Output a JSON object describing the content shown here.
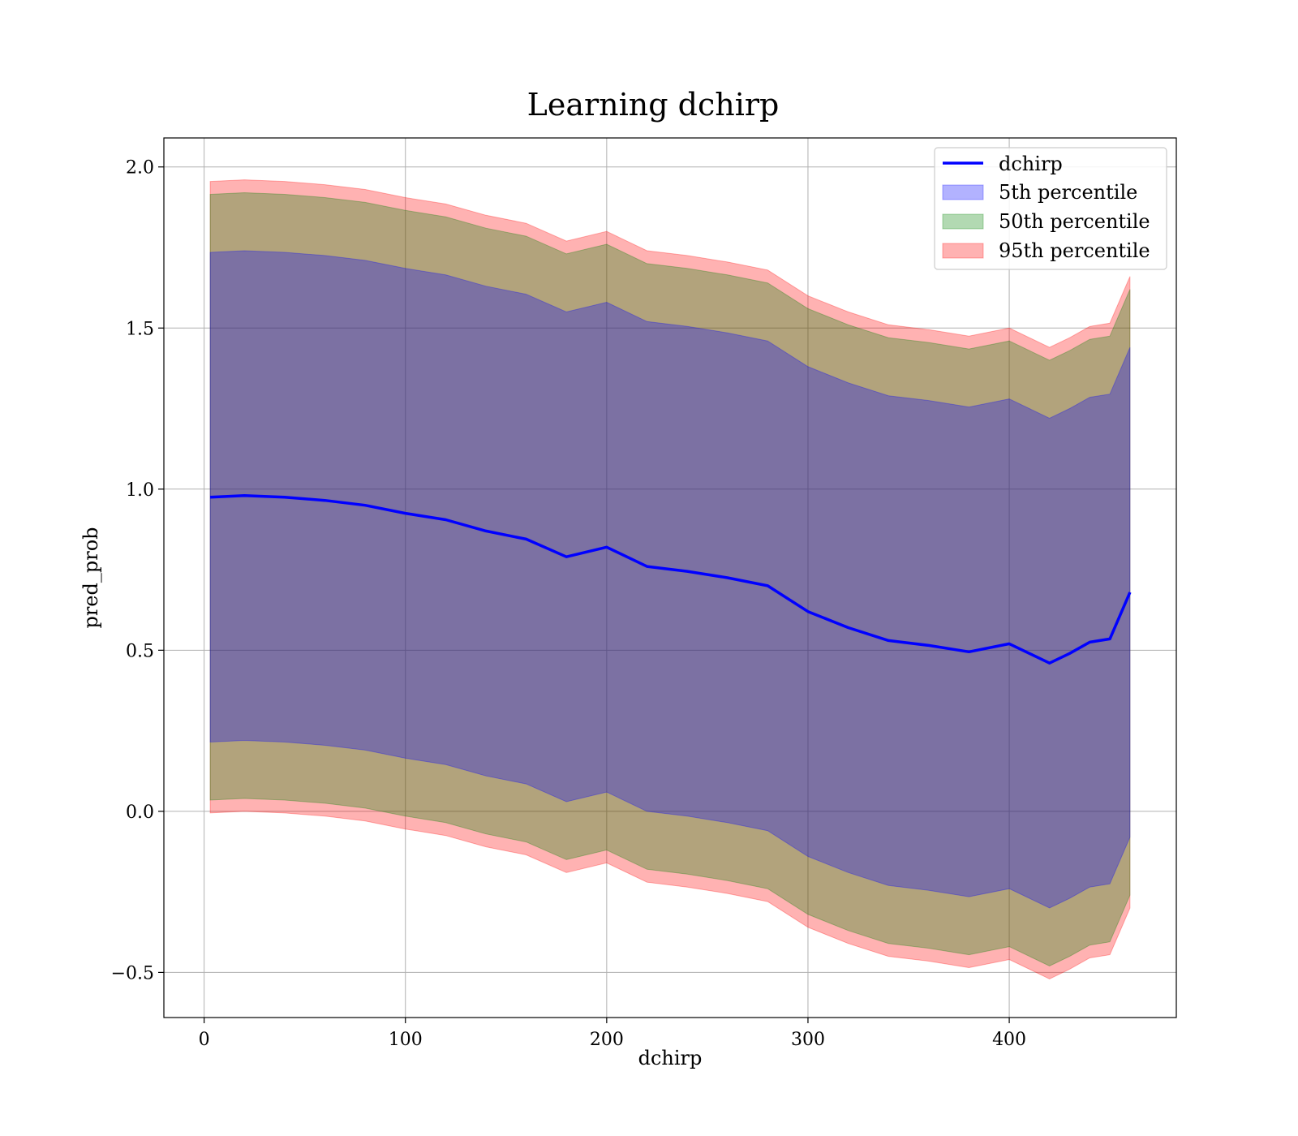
{
  "chart_data": {
    "type": "area",
    "title": "Learning dchirp",
    "xlabel": "dchirp",
    "ylabel": "pred_prob",
    "xlim": [
      -20,
      483
    ],
    "ylim": [
      -0.64,
      2.09
    ],
    "xticks": [
      0,
      100,
      200,
      300,
      400
    ],
    "xtick_labels": [
      "0",
      "100",
      "200",
      "300",
      "400"
    ],
    "yticks": [
      -0.5,
      0.0,
      0.5,
      1.0,
      1.5,
      2.0
    ],
    "ytick_labels": [
      "−0.5",
      "0.0",
      "0.5",
      "1.0",
      "1.5",
      "2.0"
    ],
    "grid": true,
    "legend_position": "top-right",
    "colors": {
      "line": "#0000ff",
      "band_5th": "#0000ff",
      "band_50th": "#008000",
      "band_95th": "#ff0000"
    },
    "x": [
      3,
      20,
      40,
      60,
      80,
      100,
      120,
      140,
      160,
      180,
      200,
      220,
      240,
      260,
      280,
      300,
      320,
      340,
      360,
      380,
      400,
      420,
      430,
      440,
      450,
      460
    ],
    "series": [
      {
        "name": "dchirp",
        "kind": "line",
        "values": [
          0.975,
          0.98,
          0.975,
          0.965,
          0.95,
          0.925,
          0.905,
          0.87,
          0.845,
          0.79,
          0.82,
          0.76,
          0.745,
          0.725,
          0.7,
          0.62,
          0.57,
          0.53,
          0.515,
          0.495,
          0.52,
          0.46,
          0.49,
          0.525,
          0.535,
          0.68
        ]
      },
      {
        "name": "5th percentile",
        "kind": "band",
        "lower": [
          0.215,
          0.22,
          0.215,
          0.205,
          0.19,
          0.165,
          0.145,
          0.11,
          0.085,
          0.03,
          0.06,
          0.0,
          -0.015,
          -0.035,
          -0.06,
          -0.14,
          -0.19,
          -0.23,
          -0.245,
          -0.265,
          -0.24,
          -0.3,
          -0.27,
          -0.235,
          -0.225,
          -0.08
        ],
        "upper": [
          1.735,
          1.74,
          1.735,
          1.725,
          1.71,
          1.685,
          1.665,
          1.63,
          1.605,
          1.55,
          1.58,
          1.52,
          1.505,
          1.485,
          1.46,
          1.38,
          1.33,
          1.29,
          1.275,
          1.255,
          1.28,
          1.22,
          1.25,
          1.285,
          1.295,
          1.44
        ]
      },
      {
        "name": "50th percentile",
        "kind": "band",
        "lower": [
          0.035,
          0.04,
          0.035,
          0.025,
          0.01,
          -0.015,
          -0.035,
          -0.07,
          -0.095,
          -0.15,
          -0.12,
          -0.18,
          -0.195,
          -0.215,
          -0.24,
          -0.32,
          -0.37,
          -0.41,
          -0.425,
          -0.445,
          -0.42,
          -0.48,
          -0.45,
          -0.415,
          -0.405,
          -0.26
        ],
        "upper": [
          1.915,
          1.92,
          1.915,
          1.905,
          1.89,
          1.865,
          1.845,
          1.81,
          1.785,
          1.73,
          1.76,
          1.7,
          1.685,
          1.665,
          1.64,
          1.56,
          1.51,
          1.47,
          1.455,
          1.435,
          1.46,
          1.4,
          1.43,
          1.465,
          1.475,
          1.62
        ]
      },
      {
        "name": "95th percentile",
        "kind": "band",
        "lower": [
          -0.005,
          0.0,
          -0.005,
          -0.015,
          -0.03,
          -0.055,
          -0.075,
          -0.11,
          -0.135,
          -0.19,
          -0.16,
          -0.22,
          -0.235,
          -0.255,
          -0.28,
          -0.36,
          -0.41,
          -0.45,
          -0.465,
          -0.485,
          -0.46,
          -0.52,
          -0.49,
          -0.455,
          -0.445,
          -0.3
        ],
        "upper": [
          1.955,
          1.96,
          1.955,
          1.945,
          1.93,
          1.905,
          1.885,
          1.85,
          1.825,
          1.77,
          1.8,
          1.74,
          1.725,
          1.705,
          1.68,
          1.6,
          1.55,
          1.51,
          1.495,
          1.475,
          1.5,
          1.44,
          1.47,
          1.505,
          1.515,
          1.66
        ]
      }
    ]
  }
}
